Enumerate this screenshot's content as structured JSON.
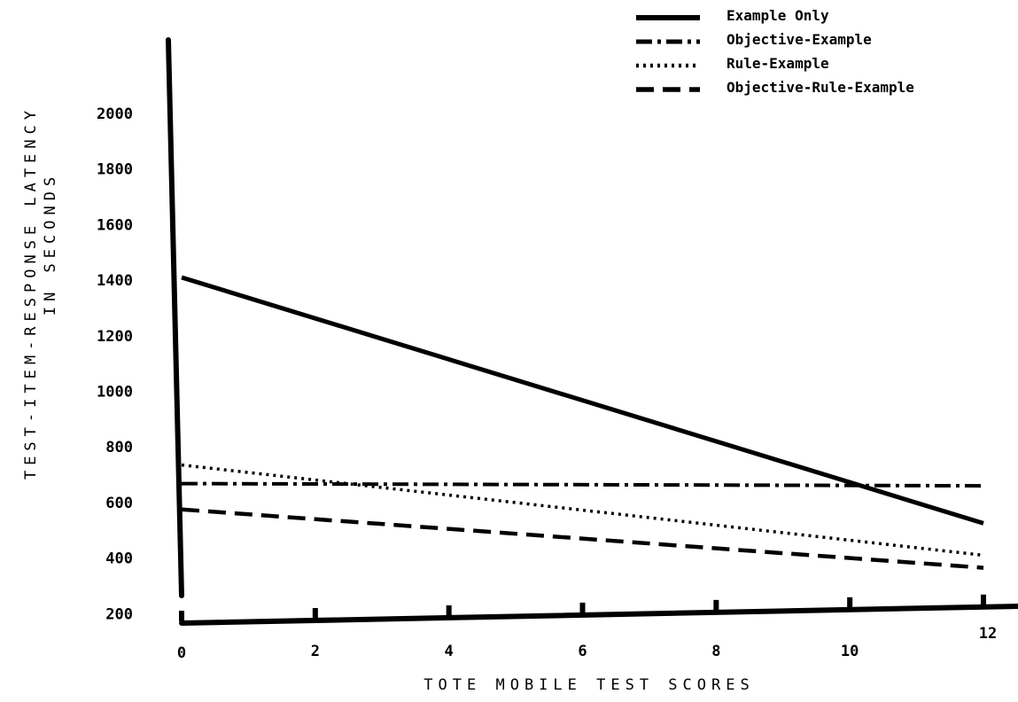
{
  "chart_data": {
    "type": "line",
    "title": "",
    "xlabel": "TOTE MOBILE TEST SCORES",
    "ylabel": "TEST-ITEM-RESPONSE LATENCY",
    "ylabel_line2": "IN SECONDS",
    "xlim": [
      0,
      12
    ],
    "ylim": [
      0,
      2000
    ],
    "x_ticks": [
      0,
      2,
      4,
      6,
      8,
      10,
      12
    ],
    "y_ticks": [
      200,
      400,
      600,
      800,
      1000,
      1200,
      1400,
      1600,
      1800,
      2000
    ],
    "grid": false,
    "legend_position": "top-right",
    "series": [
      {
        "name": "Example Only",
        "style": "solid",
        "x": [
          0,
          12
        ],
        "y": [
          1410,
          525
        ]
      },
      {
        "name": "Objective-Example",
        "style": "dashdot",
        "x": [
          0,
          12
        ],
        "y": [
          668,
          660
        ]
      },
      {
        "name": "Rule-Example",
        "style": "dotted",
        "x": [
          0,
          12
        ],
        "y": [
          735,
          410
        ]
      },
      {
        "name": "Objective-Rule-Example",
        "style": "dashed",
        "x": [
          0,
          12
        ],
        "y": [
          575,
          365
        ]
      }
    ]
  }
}
